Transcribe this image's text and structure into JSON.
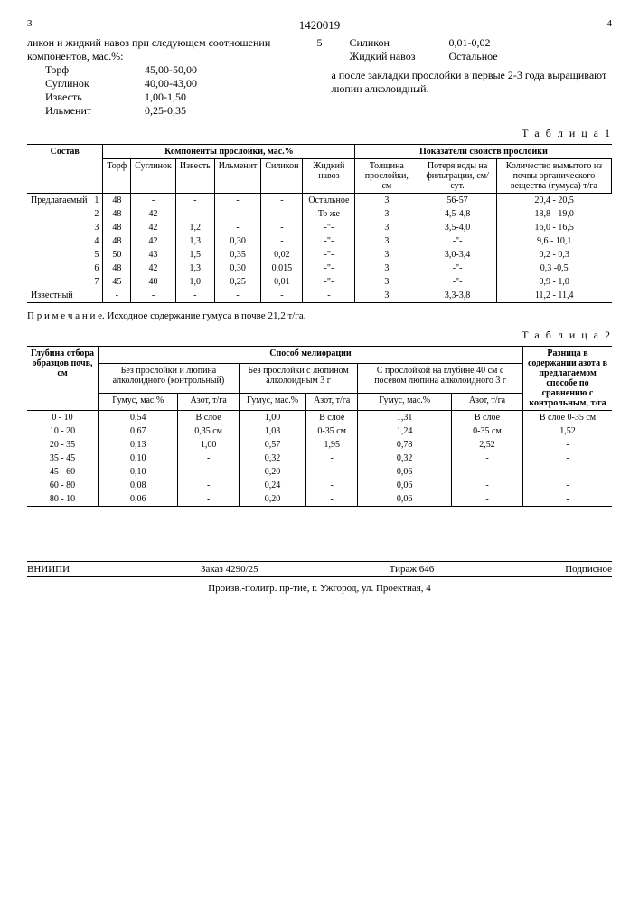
{
  "header": {
    "col3": "3",
    "docnum": "1420019",
    "col4": "4"
  },
  "intro": {
    "left_text": "ликон и жидкий навоз при следующем соотношении компонентов, мас.%:",
    "left_comp": [
      {
        "n": "Торф",
        "v": "45,00-50,00"
      },
      {
        "n": "Суглинок",
        "v": "40,00-43,00"
      },
      {
        "n": "Известь",
        "v": "1,00-1,50"
      },
      {
        "n": "Ильменит",
        "v": "0,25-0,35"
      }
    ],
    "right_comp": [
      {
        "n": "Силикон",
        "v": "0,01-0,02"
      },
      {
        "n": "Жидкий навоз",
        "v": "Остальное"
      }
    ],
    "right_text": "а после закладки прослойки в первые 2-3 года выращивают люпин алколоидный.",
    "num5": "5"
  },
  "t1": {
    "caption": "Т а б л и ц а 1",
    "h_sostav": "Состав",
    "h_comp": "Компоненты прослойки, мас.%",
    "h_prop": "Показатели свойств прослойки",
    "sh": [
      "Торф",
      "Суглинок",
      "Известь",
      "Ильменит",
      "Силикон",
      "Жидкий навоз",
      "Толщина прослойки, см",
      "Потеря воды на фильтрации, см/сут.",
      "Количество вымытого из почвы органического вещества (гумуса) т/га"
    ],
    "label": "Предлагаемый",
    "rows": [
      {
        "n": "1",
        "c": [
          "48",
          "-",
          "-",
          "-",
          "-",
          "Остальное",
          "3",
          "56-57",
          "20,4 - 20,5"
        ]
      },
      {
        "n": "2",
        "c": [
          "48",
          "42",
          "-",
          "-",
          "-",
          "То же",
          "3",
          "4,5-4,8",
          "18,8 - 19,0"
        ]
      },
      {
        "n": "3",
        "c": [
          "48",
          "42",
          "1,2",
          "-",
          "-",
          "-\"-",
          "3",
          "3,5-4,0",
          "16,0 - 16,5"
        ]
      },
      {
        "n": "4",
        "c": [
          "48",
          "42",
          "1,3",
          "0,30",
          "-",
          "-\"-",
          "3",
          "-\"-",
          "9,6 - 10,1"
        ]
      },
      {
        "n": "5",
        "c": [
          "50",
          "43",
          "1,5",
          "0,35",
          "0,02",
          "-\"-",
          "3",
          "3,0-3,4",
          "0,2 - 0,3"
        ]
      },
      {
        "n": "6",
        "c": [
          "48",
          "42",
          "1,3",
          "0,30",
          "0,015",
          "-\"-",
          "3",
          "-\"-",
          "0,3 -0,5"
        ]
      },
      {
        "n": "7",
        "c": [
          "45",
          "40",
          "1,0",
          "0,25",
          "0,01",
          "-\"-",
          "3",
          "-\"-",
          "0,9 - 1,0"
        ]
      }
    ],
    "known": {
      "label": "Известный",
      "c": [
        "-",
        "-",
        "-",
        "-",
        "-",
        "-",
        "3",
        "3,3-3,8",
        "11,2 - 11,4"
      ]
    },
    "note": "П р и м е ч а н и е. Исходное содержание гумуса в почве 21,2 т/га."
  },
  "t2": {
    "caption": "Т а б л и ц а 2",
    "h_depth": "Глубина отбора образцов почв, см",
    "h_method": "Способ мелиорации",
    "h_diff": "Разница в содержании азота в предлагаемом способе по сравнению с контрольным, т/га",
    "m1": "Без прослойки и люпина алколоидного (контрольный)",
    "m2": "Без прослойки с люпином алколоидным 3 г",
    "m3": "С прослойкой на глубине 40 см с посевом люпина алколоидного 3 г",
    "sh": [
      "Гумус, мас.%",
      "Азот, т/га",
      "Гумус, мас.%",
      "Азот, т/га",
      "Гумус, мас.%",
      "Азот, т/га"
    ],
    "rows": [
      {
        "d": "0 - 10",
        "c": [
          "0,54",
          "В слое",
          "1,00",
          "В слое",
          "1,31",
          "В слое",
          "В слое 0-35 см"
        ]
      },
      {
        "d": "10 - 20",
        "c": [
          "0,67",
          "0,35 см",
          "1,03",
          "0-35 см",
          "1,24",
          "0-35 см",
          "1,52"
        ]
      },
      {
        "d": "20 - 35",
        "c": [
          "0,13",
          "1,00",
          "0,57",
          "1,95",
          "0,78",
          "2,52",
          "-"
        ]
      },
      {
        "d": "35 - 45",
        "c": [
          "0,10",
          "-",
          "0,32",
          "-",
          "0,32",
          "-",
          "-"
        ]
      },
      {
        "d": "45 - 60",
        "c": [
          "0,10",
          "-",
          "0,20",
          "-",
          "0,06",
          "-",
          "-"
        ]
      },
      {
        "d": "60 - 80",
        "c": [
          "0,08",
          "-",
          "0,24",
          "-",
          "0,06",
          "-",
          "-"
        ]
      },
      {
        "d": "80 - 10",
        "c": [
          "0,06",
          "-",
          "0,20",
          "-",
          "0,06",
          "-",
          "-"
        ]
      }
    ]
  },
  "footer": {
    "a": "ВНИИПИ",
    "b": "Заказ 4290/25",
    "c": "Тираж 646",
    "d": "Подписное",
    "line2": "Произв.-полигр. пр-тие, г. Ужгород, ул. Проектная, 4"
  }
}
